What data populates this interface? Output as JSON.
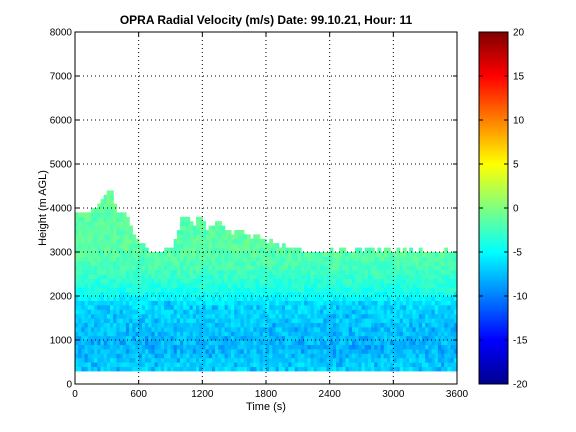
{
  "chart_data": {
    "type": "heatmap",
    "title": "OPRA Radial Velocity (m/s)  Date: 99.10.21, Hour: 11",
    "xlabel": "Time (s)",
    "ylabel": "Height (m AGL)",
    "xlim": [
      0,
      3600
    ],
    "ylim": [
      0,
      8000
    ],
    "x_ticks": [
      0,
      600,
      1200,
      1800,
      2400,
      3000,
      3600
    ],
    "y_ticks": [
      0,
      1000,
      2000,
      3000,
      4000,
      5000,
      6000,
      7000,
      8000
    ],
    "grid": true,
    "grid_style": "dotted",
    "colormap": "jet",
    "clim": [
      -20,
      20
    ],
    "colorbar_ticks": [
      20,
      15,
      10,
      5,
      0,
      -5,
      -10,
      -15,
      -20
    ],
    "data_bottom_height": 300,
    "cell_time_step": 30,
    "cell_height_step": 100,
    "top_of_data_height": [
      3900,
      3900,
      3850,
      3900,
      3850,
      3950,
      3950,
      4050,
      4150,
      4250,
      4350,
      4350,
      4100,
      3900,
      3900,
      3850,
      3800,
      3600,
      3400,
      3300,
      3200,
      3150,
      3050,
      3000,
      3000,
      3000,
      3000,
      3000,
      3050,
      3100,
      3050,
      3250,
      3500,
      3750,
      3800,
      3750,
      3650,
      3550,
      3800,
      3800,
      3650,
      3500,
      3550,
      3600,
      3700,
      3650,
      3550,
      3500,
      3450,
      3400,
      3450,
      3500,
      3450,
      3400,
      3350,
      3300,
      3400,
      3350,
      3300,
      3250,
      3200,
      3250,
      3200,
      3150,
      3100,
      3150,
      3100,
      3100,
      3050,
      3050,
      3050,
      3000,
      3000,
      3000,
      3000,
      3000,
      3000,
      3000,
      3000,
      3000,
      3050,
      3000,
      3000,
      3050,
      3050,
      3000,
      3000,
      3000,
      3050,
      3100,
      3000,
      3050,
      3100,
      3050,
      3000,
      3050,
      3000,
      3050,
      3050,
      3000,
      3000,
      3050,
      3000,
      3050,
      3000,
      3050,
      3000,
      3000,
      3050,
      3000,
      3000,
      3000,
      3000,
      3000,
      3000,
      3000,
      3050,
      3000,
      3000,
      3000
    ],
    "velocity_profile": [
      {
        "height": 300,
        "velocity": -6.5
      },
      {
        "height": 800,
        "velocity": -7.5
      },
      {
        "height": 1300,
        "velocity": -7.0
      },
      {
        "height": 1800,
        "velocity": -6.0
      },
      {
        "height": 2100,
        "velocity": -4.0
      },
      {
        "height": 2500,
        "velocity": -2.5
      },
      {
        "height": 3000,
        "velocity": -1.5
      },
      {
        "height": 3500,
        "velocity": -1.5
      },
      {
        "height": 4400,
        "velocity": -1.0
      }
    ]
  }
}
